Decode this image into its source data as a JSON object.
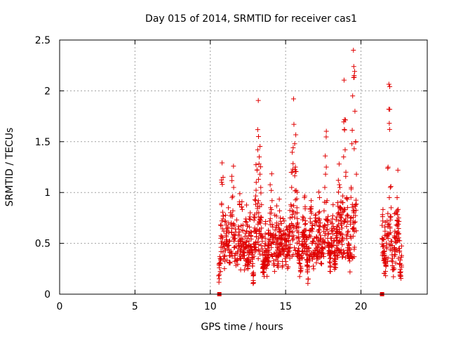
{
  "chart_data": {
    "type": "scatter",
    "title": "Day 015 of 2014, SRMTID for receiver cas1",
    "xlabel": "GPS time / hours",
    "ylabel": "SRMTID / TECUs",
    "xlim": [
      0,
      24.4
    ],
    "ylim": [
      0,
      2.5
    ],
    "xticks": [
      0,
      5,
      10,
      15,
      20
    ],
    "xtick_labels": [
      "0",
      "5",
      "10",
      "15",
      "20"
    ],
    "yticks": [
      0,
      0.5,
      1,
      1.5,
      2,
      2.5
    ],
    "ytick_labels": [
      "0",
      "0.5",
      "1",
      "1.5",
      "2",
      "2.5"
    ],
    "grid": true,
    "marker": "plus",
    "color": "#e00000",
    "zero_points": [
      10.6,
      21.4
    ],
    "segments": [
      {
        "start": 10.55,
        "end": 19.7
      },
      {
        "start": 21.4,
        "end": 22.7
      }
    ],
    "series": [
      {
        "name": "SRMTID",
        "points": [
          [
            10.55,
            0.18
          ],
          [
            10.6,
            0.26
          ],
          [
            10.65,
            0.31
          ],
          [
            10.7,
            0.55
          ],
          [
            10.75,
            0.88
          ],
          [
            10.8,
            1.08
          ],
          [
            10.85,
            1.15
          ],
          [
            10.9,
            0.62
          ],
          [
            10.95,
            0.45
          ],
          [
            11.0,
            0.72
          ],
          [
            11.05,
            0.58
          ],
          [
            11.1,
            0.48
          ],
          [
            11.15,
            0.66
          ],
          [
            11.2,
            0.85
          ],
          [
            11.25,
            0.52
          ],
          [
            11.3,
            0.41
          ],
          [
            11.35,
            0.77
          ],
          [
            11.4,
            0.61
          ],
          [
            11.45,
            0.95
          ],
          [
            11.5,
            0.82
          ],
          [
            11.55,
            1.05
          ],
          [
            11.6,
            0.68
          ],
          [
            11.65,
            0.55
          ],
          [
            11.7,
            0.47
          ],
          [
            11.75,
            0.73
          ],
          [
            11.8,
            0.34
          ],
          [
            11.85,
            0.58
          ],
          [
            11.9,
            0.64
          ],
          [
            11.95,
            0.88
          ],
          [
            12.0,
            0.42
          ],
          [
            12.05,
            0.55
          ],
          [
            12.1,
            0.91
          ],
          [
            12.15,
            0.63
          ],
          [
            12.2,
            0.5
          ],
          [
            12.25,
            0.38
          ],
          [
            12.3,
            0.45
          ],
          [
            12.35,
            0.6
          ],
          [
            12.4,
            0.71
          ],
          [
            12.45,
            0.55
          ],
          [
            12.5,
            0.32
          ],
          [
            12.55,
            0.48
          ],
          [
            12.6,
            0.66
          ],
          [
            12.65,
            0.8
          ],
          [
            12.7,
            0.57
          ],
          [
            12.75,
            0.44
          ],
          [
            12.8,
            0.36
          ],
          [
            12.85,
            0.18
          ],
          [
            12.9,
            0.62
          ],
          [
            12.95,
            0.75
          ],
          [
            13.0,
            0.92
          ],
          [
            13.05,
            1.1
          ],
          [
            13.1,
            1.22
          ],
          [
            13.15,
            1.42
          ],
          [
            13.2,
            1.55
          ],
          [
            13.25,
            1.35
          ],
          [
            13.3,
            1.18
          ],
          [
            13.35,
            1.05
          ],
          [
            13.4,
            0.88
          ],
          [
            13.45,
            0.52
          ],
          [
            13.5,
            0.32
          ],
          [
            13.55,
            0.25
          ],
          [
            13.6,
            0.41
          ],
          [
            13.65,
            0.55
          ],
          [
            13.7,
            0.36
          ],
          [
            13.75,
            0.28
          ],
          [
            13.8,
            0.45
          ],
          [
            13.85,
            0.6
          ],
          [
            13.9,
            0.48
          ],
          [
            13.95,
            0.72
          ],
          [
            14.0,
            0.85
          ],
          [
            14.05,
            1.02
          ],
          [
            14.1,
            0.92
          ],
          [
            14.15,
            0.66
          ],
          [
            14.2,
            0.51
          ],
          [
            14.25,
            0.4
          ],
          [
            14.3,
            0.63
          ],
          [
            14.35,
            0.58
          ],
          [
            14.4,
            0.7
          ],
          [
            14.45,
            0.46
          ],
          [
            14.5,
            0.38
          ],
          [
            14.55,
            0.55
          ],
          [
            14.6,
            0.82
          ],
          [
            14.65,
            0.75
          ],
          [
            14.7,
            0.62
          ],
          [
            14.75,
            0.5
          ],
          [
            14.8,
            0.44
          ],
          [
            14.85,
            0.58
          ],
          [
            14.9,
            0.72
          ],
          [
            14.95,
            0.6
          ],
          [
            15.0,
            0.48
          ],
          [
            15.05,
            0.66
          ],
          [
            15.1,
            0.55
          ],
          [
            15.15,
            0.38
          ],
          [
            15.2,
            0.52
          ],
          [
            15.25,
            0.62
          ],
          [
            15.3,
            0.75
          ],
          [
            15.35,
            0.88
          ],
          [
            15.4,
            1.05
          ],
          [
            15.45,
            1.2
          ],
          [
            15.5,
            1.44
          ],
          [
            15.55,
            1.67
          ],
          [
            15.6,
            1.48
          ],
          [
            15.65,
            1.25
          ],
          [
            15.7,
            1.02
          ],
          [
            15.75,
            0.85
          ],
          [
            15.8,
            0.7
          ],
          [
            15.85,
            0.55
          ],
          [
            15.9,
            0.42
          ],
          [
            15.95,
            0.3
          ],
          [
            16.0,
            0.22
          ],
          [
            16.05,
            0.38
          ],
          [
            16.1,
            0.52
          ],
          [
            16.15,
            0.61
          ],
          [
            16.2,
            0.75
          ],
          [
            16.25,
            0.95
          ],
          [
            16.3,
            0.84
          ],
          [
            16.35,
            0.63
          ],
          [
            16.4,
            0.47
          ],
          [
            16.45,
            0.34
          ],
          [
            16.5,
            0.15
          ],
          [
            16.55,
            0.45
          ],
          [
            16.6,
            0.58
          ],
          [
            16.65,
            0.71
          ],
          [
            16.7,
            0.86
          ],
          [
            16.75,
            0.62
          ],
          [
            16.8,
            0.52
          ],
          [
            16.85,
            0.4
          ],
          [
            16.9,
            0.55
          ],
          [
            16.95,
            0.68
          ],
          [
            17.0,
            0.78
          ],
          [
            17.05,
            0.56
          ],
          [
            17.1,
            0.44
          ],
          [
            17.15,
            0.62
          ],
          [
            17.2,
            0.8
          ],
          [
            17.25,
            0.95
          ],
          [
            17.3,
            0.7
          ],
          [
            17.35,
            0.55
          ],
          [
            17.4,
            0.38
          ],
          [
            17.45,
            0.51
          ],
          [
            17.5,
            0.66
          ],
          [
            17.55,
            0.82
          ],
          [
            17.6,
            1.05
          ],
          [
            17.65,
            1.18
          ],
          [
            17.7,
            1.25
          ],
          [
            17.75,
            0.92
          ],
          [
            17.8,
            0.72
          ],
          [
            17.85,
            0.6
          ],
          [
            17.9,
            0.48
          ],
          [
            17.95,
            0.35
          ],
          [
            18.0,
            0.55
          ],
          [
            18.05,
            0.62
          ],
          [
            18.1,
            0.74
          ],
          [
            18.15,
            0.88
          ],
          [
            18.2,
            0.52
          ],
          [
            18.25,
            0.41
          ],
          [
            18.3,
            0.3
          ],
          [
            18.35,
            0.62
          ],
          [
            18.4,
            0.76
          ],
          [
            18.45,
            0.9
          ],
          [
            18.5,
            1.12
          ],
          [
            18.55,
            1.28
          ],
          [
            18.6,
            1.05
          ],
          [
            18.65,
            0.85
          ],
          [
            18.7,
            0.68
          ],
          [
            18.75,
            0.55
          ],
          [
            18.8,
            0.9
          ],
          [
            18.85,
            1.35
          ],
          [
            18.9,
            1.62
          ],
          [
            18.95,
            1.42
          ],
          [
            19.0,
            1.2
          ],
          [
            19.05,
            0.95
          ],
          [
            19.1,
            0.78
          ],
          [
            19.15,
            0.62
          ],
          [
            19.2,
            0.48
          ],
          [
            19.25,
            0.36
          ],
          [
            19.3,
            0.72
          ],
          [
            19.35,
            1.05
          ],
          [
            19.4,
            1.48
          ],
          [
            19.45,
            1.95
          ],
          [
            19.5,
            2.4
          ],
          [
            19.55,
            2.15
          ],
          [
            19.6,
            1.8
          ],
          [
            19.65,
            1.5
          ],
          [
            19.7,
            1.18
          ],
          [
            21.4,
            0.55
          ],
          [
            21.45,
            0.72
          ],
          [
            21.5,
            0.48
          ],
          [
            21.55,
            0.35
          ],
          [
            21.6,
            0.62
          ],
          [
            21.65,
            0.28
          ],
          [
            21.7,
            0.45
          ],
          [
            21.75,
            0.58
          ],
          [
            21.8,
            1.25
          ],
          [
            21.85,
            1.82
          ],
          [
            21.9,
            1.62
          ],
          [
            21.95,
            1.05
          ],
          [
            22.0,
            0.85
          ],
          [
            22.05,
            0.52
          ],
          [
            22.1,
            0.32
          ],
          [
            22.15,
            0.24
          ],
          [
            22.2,
            0.45
          ],
          [
            22.25,
            0.62
          ],
          [
            22.3,
            0.55
          ],
          [
            22.35,
            0.68
          ],
          [
            22.4,
            0.95
          ],
          [
            22.45,
            1.22
          ],
          [
            22.5,
            0.75
          ],
          [
            22.55,
            0.45
          ],
          [
            22.6,
            0.3
          ],
          [
            22.65,
            0.18
          ],
          [
            22.7,
            0.38
          ]
        ]
      }
    ]
  }
}
